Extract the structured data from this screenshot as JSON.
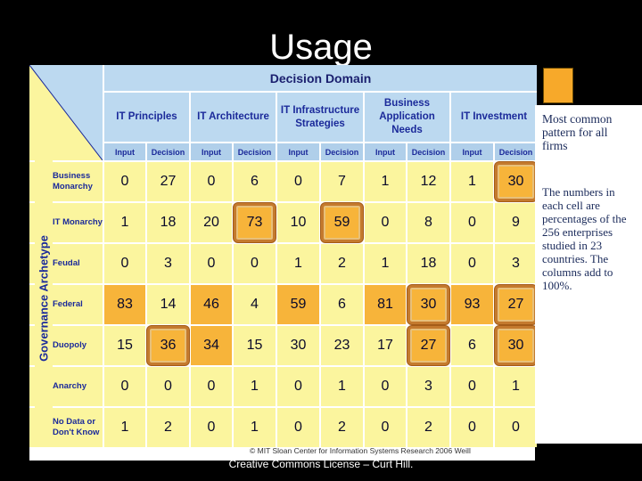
{
  "slide_title": "Usage",
  "footer": "Creative Commons License – Curt Hill.",
  "table": {
    "domain_title": "Decision Domain",
    "archetype_label": "Governance Archetype",
    "categories": [
      "IT Principles",
      "IT Architecture",
      "IT Infrastructure Strategies",
      "Business Application Needs",
      "IT Investment"
    ],
    "sub_headers": [
      "Input",
      "Decision",
      "Input",
      "Decision",
      "Input",
      "Decision",
      "Input",
      "Decision",
      "Input",
      "Decision"
    ],
    "rows": [
      {
        "label": "Business Monarchy",
        "values": [
          "0",
          "27",
          "0",
          "6",
          "0",
          "7",
          "1",
          "12",
          "1",
          "30"
        ]
      },
      {
        "label": "IT Monarchy",
        "values": [
          "1",
          "18",
          "20",
          "73",
          "10",
          "59",
          "0",
          "8",
          "0",
          "9"
        ]
      },
      {
        "label": "Feudal",
        "values": [
          "0",
          "3",
          "0",
          "0",
          "1",
          "2",
          "1",
          "18",
          "0",
          "3"
        ]
      },
      {
        "label": "Federal",
        "values": [
          "83",
          "14",
          "46",
          "4",
          "59",
          "6",
          "81",
          "30",
          "93",
          "27"
        ]
      },
      {
        "label": "Duopoly",
        "values": [
          "15",
          "36",
          "34",
          "15",
          "30",
          "23",
          "17",
          "27",
          "6",
          "30"
        ]
      },
      {
        "label": "Anarchy",
        "values": [
          "0",
          "0",
          "0",
          "1",
          "0",
          "1",
          "0",
          "3",
          "0",
          "1"
        ]
      },
      {
        "label": "No Data or Don't Know",
        "values": [
          "1",
          "2",
          "0",
          "1",
          "0",
          "2",
          "0",
          "2",
          "0",
          "0"
        ]
      }
    ],
    "credit": "© MIT Sloan Center for Information Systems Research 2006 Weill"
  },
  "legend_text": "Most common pattern for all firms",
  "notes": "The numbers in each cell are percentages of the 256 enterprises studied in 23 countries. The columns add to 100%.",
  "colors": {
    "highlight": "#f7b43a",
    "cell": "#fbf59e",
    "header": "#bcd9f0"
  }
}
